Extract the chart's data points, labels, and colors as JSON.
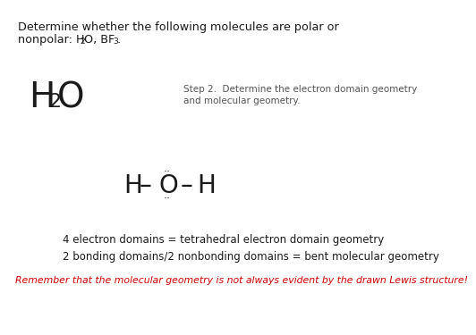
{
  "bg_color": "#ffffff",
  "title_line1": "Determine whether the following molecules are polar or",
  "title_line2_prefix": "nonpolar: H",
  "title_line2_sub1": "2",
  "title_line2_mid": "O, BF",
  "title_line2_sub2": "3",
  "title_line2_end": ".",
  "h2o_H": "H",
  "h2o_2": "2",
  "h2o_O": "O",
  "step2_line1": "Step 2.  Determine the electron domain geometry",
  "step2_line2": "and molecular geometry.",
  "electron_domain_text": "4 electron domains = tetrahedral electron domain geometry",
  "bonding_domain_text": "2 bonding domains/2 nonbonding domains = bent molecular geometry",
  "reminder_text": "Remember that the molecular geometry is not always evident by the drawn Lewis structure!",
  "reminder_color": "#cc0000",
  "text_color": "#1a1a1a",
  "gray_color": "#555555",
  "title_fontsize": 9.2,
  "step2_fontsize": 7.5,
  "h2o_big_fontsize": 28,
  "h2o_sub_fontsize": 16,
  "lewis_fontsize": 20,
  "dot_fontsize": 9,
  "body_fontsize": 8.5,
  "reminder_fontsize": 7.8
}
